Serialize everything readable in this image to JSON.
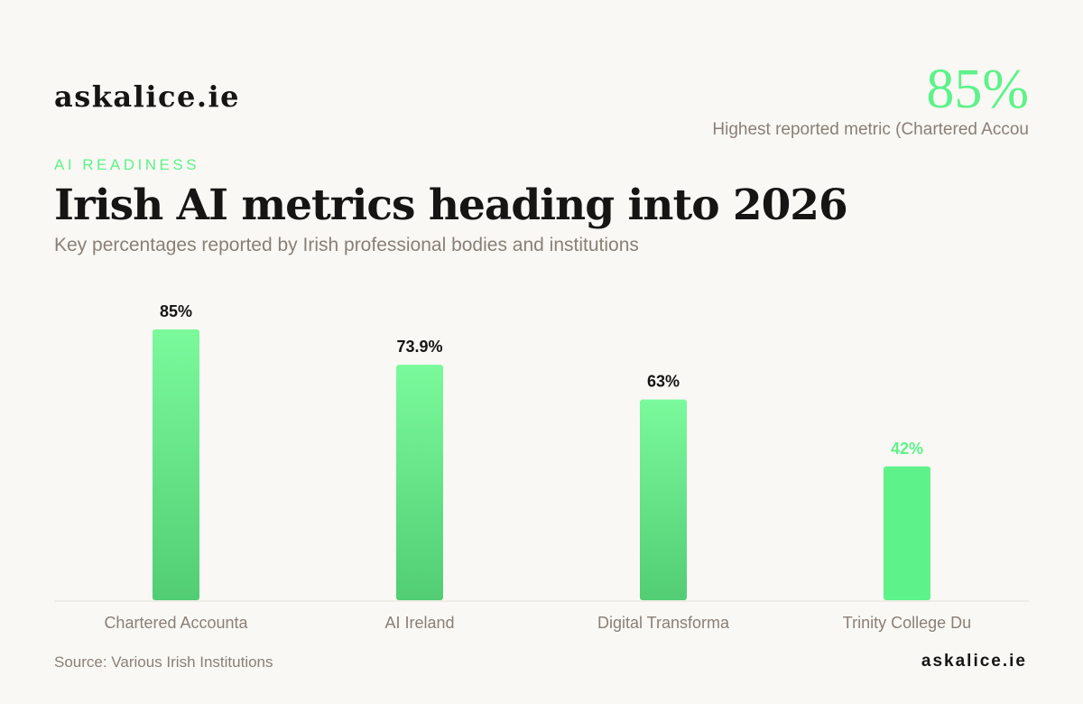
{
  "brand": "askalice.ie",
  "kpi": {
    "value": "85%",
    "label": "Highest reported metric (Chartered Accou"
  },
  "eyebrow": "AI READINESS",
  "footer": {
    "source": "Source: Various Irish Institutions",
    "brand": "askalice.ie"
  },
  "colors": {
    "accent": "#5ef28a",
    "bar_top": "#7afa9b",
    "bar_bottom": "#52cd74",
    "highlight_bar": "#5ef28a",
    "text_dark": "#161514",
    "text_muted": "#8a7f77"
  },
  "chart_data": {
    "type": "bar",
    "title": "Irish AI metrics heading into 2026",
    "subtitle": "Key percentages reported by Irish professional bodies and institutions",
    "categories": [
      "Chartered Accounta",
      "AI Ireland",
      "Digital Transforma",
      "Trinity College Du"
    ],
    "values": [
      85,
      73.9,
      63,
      42
    ],
    "value_labels": [
      "85%",
      "73.9%",
      "63%",
      "42%"
    ],
    "highlighted_index": 3,
    "ylim": [
      0,
      85
    ],
    "grid": false,
    "legend": "none",
    "xlabel": "",
    "ylabel": ""
  }
}
